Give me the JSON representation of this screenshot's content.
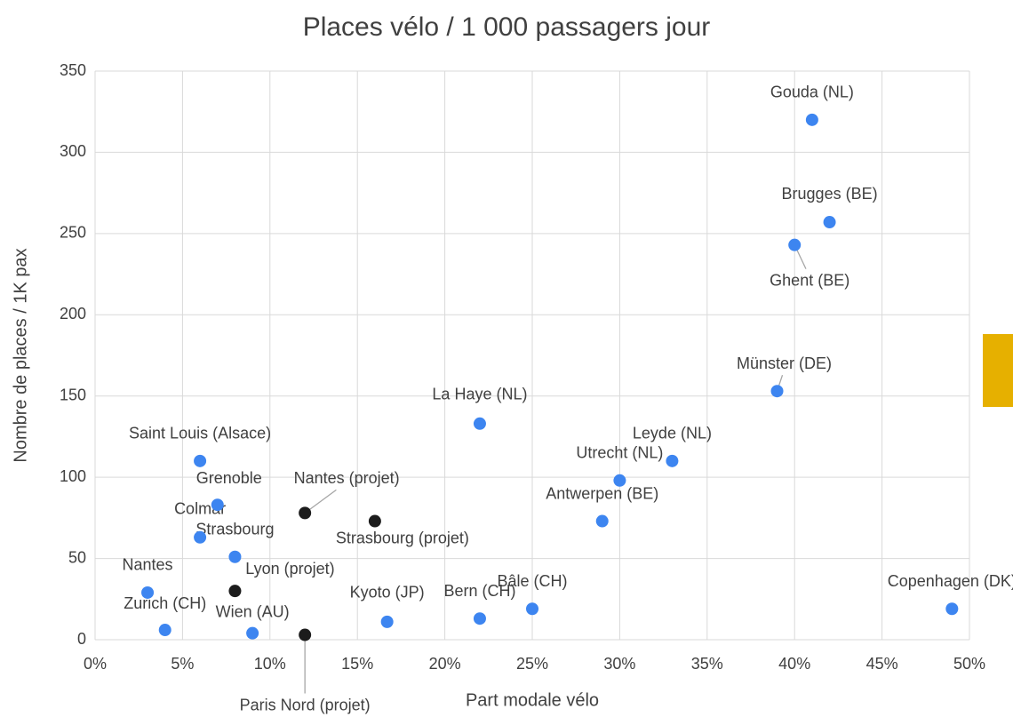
{
  "chart_data": {
    "type": "scatter",
    "title": "Places vélo / 1 000 passagers jour",
    "x_label": "Part modale vélo",
    "y_label": "Nombre de places / 1K pax",
    "labels": [
      "Gouda (NL)",
      "Brugges (BE)",
      "Ghent (BE)",
      "Münster (DE)",
      "La Haye (NL)",
      "Leyde (NL)",
      "Utrecht (NL)",
      "Antwerpen (BE)",
      "Copenhagen (DK)",
      "Bâle (CH)",
      "Bern (CH)",
      "Kyoto (JP)",
      "Wien (AU)",
      "Paris Nord (projet)",
      "Zurich (CH)",
      "Nantes",
      "Lyon (projet)",
      "Strasbourg",
      "Colmar",
      "Grenoble",
      "Saint Louis (Alsace)",
      "Nantes (projet)",
      "Strasbourg (projet)"
    ],
    "x": [
      41,
      42,
      40,
      39,
      22,
      33,
      30,
      29,
      49,
      25,
      22,
      16.7,
      9,
      12,
      4,
      3,
      8,
      8,
      6,
      7,
      6,
      12,
      16
    ],
    "values": [
      320,
      257,
      243,
      153,
      133,
      110,
      98,
      73,
      19,
      19,
      13,
      11,
      4,
      3,
      6,
      29,
      30,
      51,
      63,
      83,
      110,
      78,
      73
    ],
    "colors": [
      "#3d85f0",
      "#3d85f0",
      "#3d85f0",
      "#3d85f0",
      "#3d85f0",
      "#3d85f0",
      "#3d85f0",
      "#3d85f0",
      "#3d85f0",
      "#3d85f0",
      "#3d85f0",
      "#3d85f0",
      "#3d85f0",
      "#1c1c1c",
      "#3d85f0",
      "#3d85f0",
      "#1c1c1c",
      "#3d85f0",
      "#3d85f0",
      "#3d85f0",
      "#3d85f0",
      "#1c1c1c",
      "#1c1c1c"
    ],
    "xlim": [
      0,
      50
    ],
    "xticks": [
      {
        "value": 0,
        "label": "0%"
      },
      {
        "value": 5,
        "label": "5%"
      },
      {
        "value": 10,
        "label": "10%"
      },
      {
        "value": 15,
        "label": "15%"
      },
      {
        "value": 20,
        "label": "20%"
      },
      {
        "value": 25,
        "label": "25%"
      },
      {
        "value": 30,
        "label": "30%"
      },
      {
        "value": 35,
        "label": "35%"
      },
      {
        "value": 40,
        "label": "40%"
      },
      {
        "value": 45,
        "label": "45%"
      },
      {
        "value": 50,
        "label": "50%"
      }
    ],
    "ylim": [
      0,
      350
    ],
    "yticks": [
      0,
      50,
      100,
      150,
      200,
      250,
      300,
      350
    ],
    "grid": true
  }
}
